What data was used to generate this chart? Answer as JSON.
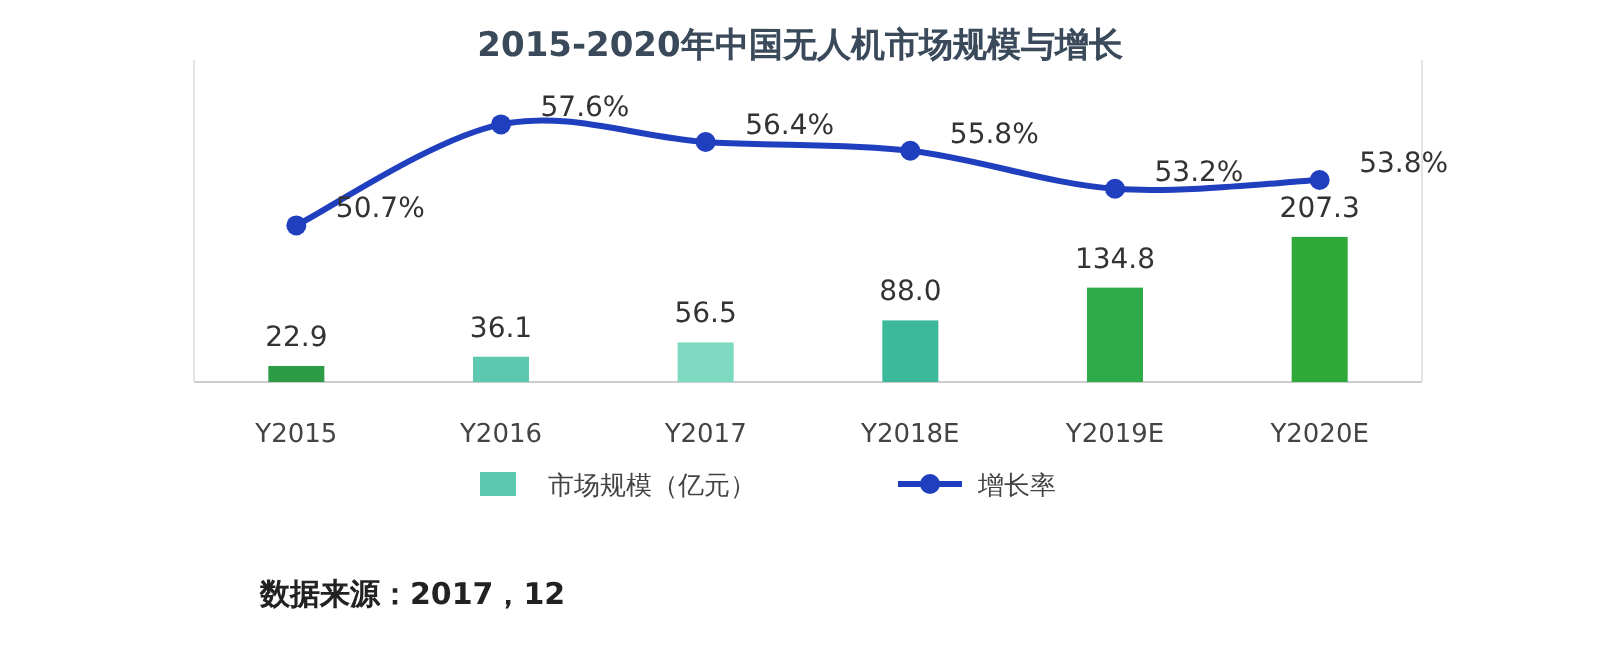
{
  "chart_data": {
    "type": "bar",
    "title": "2015-2020年中国无人机市场规模与增长",
    "categories": [
      "Y2015",
      "Y2016",
      "Y2017",
      "Y2018E",
      "Y2019E",
      "Y2020E"
    ],
    "series": [
      {
        "name": "市场规模（亿元）",
        "colors": [
          "#2e9b46",
          "#5cc8b0",
          "#7dd9c0",
          "#3cb89a",
          "#2eaa48",
          "#2fa83a"
        ],
        "color": "#5cc8b0",
        "values": [
          22.9,
          36.1,
          56.5,
          88.0,
          134.8,
          207.3
        ],
        "value_labels": [
          "22.9",
          "36.1",
          "56.5",
          "88.0",
          "134.8",
          "207.3"
        ]
      },
      {
        "name": "增长率",
        "type": "line",
        "axis": "y2",
        "color": "#1f3fbf",
        "values": [
          50.7,
          57.6,
          56.4,
          55.8,
          53.2,
          53.8
        ],
        "value_labels": [
          "50.7%",
          "57.6%",
          "56.4%",
          "55.8%",
          "53.2%",
          "53.8%"
        ]
      }
    ],
    "ylim": [
      0,
      460
    ],
    "y2lim": [
      40,
      62
    ],
    "tick_labels": "x",
    "data_labels": true,
    "marker": "circle",
    "legend": "bottom",
    "annotations": [
      "数据来源：2017，12"
    ]
  }
}
